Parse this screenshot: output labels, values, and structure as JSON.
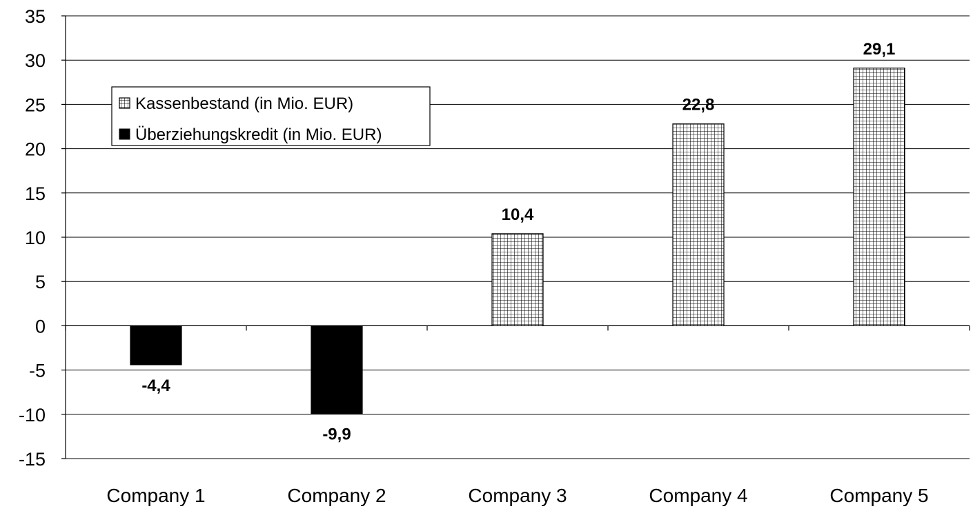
{
  "chart_data": {
    "type": "bar",
    "categories": [
      "Company 1",
      "Company 2",
      "Company 3",
      "Company 4",
      "Company 5"
    ],
    "series": [
      {
        "name": "Kassenbestand (in Mio. EUR)",
        "values": [
          null,
          null,
          10.4,
          22.8,
          29.1
        ],
        "color": "#ffffff",
        "pattern": "grid"
      },
      {
        "name": "Überziehungskredit (in Mio. EUR)",
        "values": [
          -4.4,
          -9.9,
          null,
          null,
          null
        ],
        "color": "#000000",
        "pattern": "solid"
      }
    ],
    "data_labels": [
      "-4,4",
      "-9,9",
      "10,4",
      "22,8",
      "29,1"
    ],
    "y_ticks": [
      "35",
      "30",
      "25",
      "20",
      "15",
      "10",
      "5",
      "0",
      "-5",
      "-10",
      "-15"
    ],
    "ylim": [
      -15,
      35
    ],
    "ystep": 5,
    "grid": true,
    "legend_position": "top-left"
  }
}
